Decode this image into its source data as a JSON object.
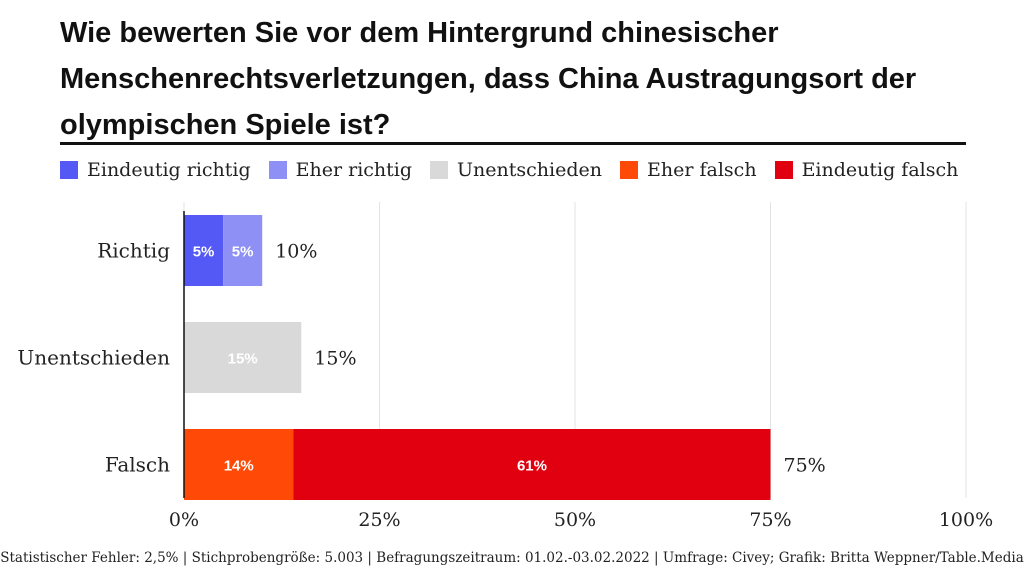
{
  "title": "Wie bewerten Sie vor dem Hintergrund chinesischer Menschenrechtsverletzungen, dass China Austragungsort der olympischen Spiele ist?",
  "legend": [
    {
      "label": "Eindeutig richtig",
      "color": "#5458f5"
    },
    {
      "label": "Eher richtig",
      "color": "#8e90f5"
    },
    {
      "label": "Unentschieden",
      "color": "#d9d9d9"
    },
    {
      "label": "Eher falsch",
      "color": "#fe4a06"
    },
    {
      "label": "Eindeutig falsch",
      "color": "#e0000f"
    }
  ],
  "chart_data": {
    "type": "bar",
    "orientation": "horizontal",
    "stacked": true,
    "categories": [
      "Richtig",
      "Unentschieden",
      "Falsch"
    ],
    "series": [
      {
        "name": "Eindeutig richtig",
        "color": "#5458f5",
        "values": [
          5,
          0,
          0
        ],
        "labels": [
          "5%",
          "",
          ""
        ]
      },
      {
        "name": "Eher richtig",
        "color": "#8e90f5",
        "values": [
          5,
          0,
          0
        ],
        "labels": [
          "5%",
          "",
          ""
        ]
      },
      {
        "name": "Unentschieden",
        "color": "#d9d9d9",
        "values": [
          0,
          15,
          0
        ],
        "labels": [
          "",
          "15%",
          ""
        ]
      },
      {
        "name": "Eher falsch",
        "color": "#fe4a06",
        "values": [
          0,
          0,
          14
        ],
        "labels": [
          "",
          "",
          "14%"
        ]
      },
      {
        "name": "Eindeutig falsch",
        "color": "#e0000f",
        "values": [
          0,
          0,
          61
        ],
        "labels": [
          "",
          "",
          "61%"
        ]
      }
    ],
    "totals": [
      10,
      15,
      75
    ],
    "total_labels": [
      "10%",
      "15%",
      "75%"
    ],
    "xlim": [
      0,
      100
    ],
    "xticks": [
      0,
      25,
      50,
      75,
      100
    ],
    "xtick_labels": [
      "0%",
      "25%",
      "50%",
      "75%",
      "100%"
    ],
    "grid": true,
    "legend_position": "top"
  },
  "footnote": "Statistischer Fehler: 2,5% | Stichprobengröße: 5.003 | Befragungszeitraum: 01.02.-03.02.2022  | Umfrage: Civey; Grafik: Britta Weppner/Table.Media"
}
